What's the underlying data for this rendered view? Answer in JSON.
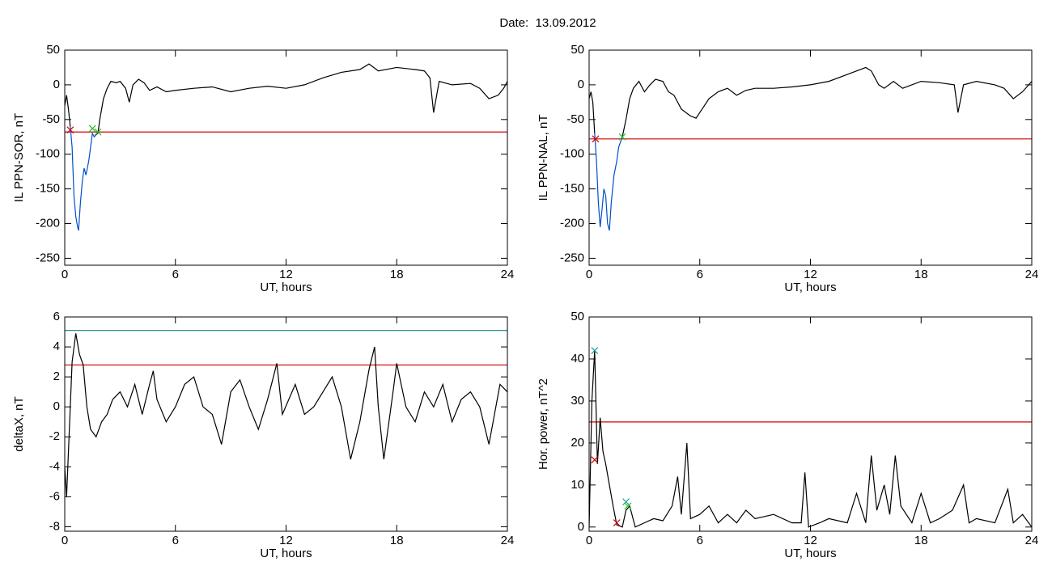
{
  "title": "Date:  13.09.2012",
  "chart_data": [
    {
      "type": "line",
      "ylabel": "IL PPN-SOR, nT",
      "xlabel": "UT, hours",
      "xlim": [
        0,
        24
      ],
      "xticks": [
        0,
        6,
        12,
        18,
        24
      ],
      "ylim": [
        -260,
        50
      ],
      "yticks": [
        -250,
        -200,
        -150,
        -100,
        -50,
        0,
        50
      ],
      "x": [
        0,
        0.1,
        0.2,
        0.3,
        0.4,
        0.5,
        0.6,
        0.7,
        0.75,
        0.85,
        0.95,
        1.05,
        1.15,
        1.3,
        1.4,
        1.5,
        1.6,
        1.7,
        1.8,
        1.9,
        2.1,
        2.3,
        2.5,
        2.8,
        3.0,
        3.3,
        3.5,
        3.7,
        4.0,
        4.3,
        4.6,
        5.0,
        5.5,
        6,
        7,
        8,
        9,
        10,
        11,
        12,
        13,
        14,
        15,
        16,
        16.5,
        17,
        18,
        19,
        19.5,
        19.8,
        20,
        20.3,
        21,
        22,
        22.5,
        23,
        23.5,
        23.8,
        24
      ],
      "series": [
        {
          "color": "#000000",
          "values": [
            -30,
            -15,
            -35,
            -60,
            null,
            null,
            null,
            null,
            null,
            null,
            null,
            null,
            null,
            null,
            null,
            null,
            null,
            null,
            -70,
            -50,
            -20,
            -5,
            5,
            3,
            5,
            -5,
            -25,
            0,
            8,
            3,
            -8,
            -3,
            -10,
            -8,
            -5,
            -3,
            -10,
            -5,
            -2,
            -5,
            0,
            10,
            18,
            22,
            30,
            20,
            25,
            22,
            20,
            10,
            -40,
            5,
            0,
            2,
            -5,
            -20,
            -15,
            -5,
            5
          ]
        },
        {
          "color": "#0050c8",
          "values": [
            null,
            null,
            null,
            -60,
            -90,
            -160,
            -190,
            -205,
            -210,
            -170,
            -140,
            -120,
            -130,
            -110,
            -90,
            -70,
            -75,
            -72,
            -70,
            null,
            null,
            null,
            null,
            null,
            null,
            null,
            null,
            null,
            null,
            null,
            null,
            null,
            null,
            null,
            null,
            null,
            null,
            null,
            null,
            null,
            null,
            null,
            null,
            null,
            null,
            null,
            null,
            null,
            null,
            null,
            null,
            null,
            null,
            null,
            null,
            null,
            null,
            null,
            null
          ]
        }
      ],
      "hlines": [
        {
          "value": -68,
          "color": "#d00000"
        }
      ],
      "markers": [
        {
          "x": 0.3,
          "y": -65,
          "color": "#d00000"
        },
        {
          "x": 1.5,
          "y": -63,
          "color": "#20c020"
        },
        {
          "x": 1.8,
          "y": -68,
          "color": "#20c020"
        }
      ]
    },
    {
      "type": "line",
      "ylabel": "IL PPN-NAL, nT",
      "xlabel": "UT, hours",
      "xlim": [
        0,
        24
      ],
      "xticks": [
        0,
        6,
        12,
        18,
        24
      ],
      "ylim": [
        -260,
        50
      ],
      "yticks": [
        -250,
        -200,
        -150,
        -100,
        -50,
        0,
        50
      ],
      "x": [
        0,
        0.1,
        0.2,
        0.3,
        0.4,
        0.5,
        0.6,
        0.7,
        0.8,
        0.9,
        1.0,
        1.1,
        1.2,
        1.35,
        1.5,
        1.6,
        1.8,
        2.0,
        2.2,
        2.4,
        2.7,
        3,
        3.3,
        3.6,
        4,
        4.3,
        4.6,
        5,
        5.5,
        5.8,
        6,
        6.5,
        7,
        7.5,
        8,
        8.5,
        9,
        10,
        11,
        12,
        13,
        14,
        15,
        15.3,
        15.7,
        16,
        16.5,
        17,
        18,
        19,
        19.8,
        20,
        20.3,
        21,
        22,
        22.5,
        23,
        23.5,
        24
      ],
      "series": [
        {
          "color": "#000000",
          "values": [
            -20,
            -10,
            -25,
            -70,
            null,
            null,
            null,
            null,
            null,
            null,
            null,
            null,
            null,
            null,
            null,
            null,
            -75,
            -50,
            -20,
            -5,
            5,
            -10,
            0,
            8,
            5,
            -10,
            -15,
            -35,
            -45,
            -48,
            -40,
            -20,
            -10,
            -5,
            -15,
            -8,
            -5,
            -5,
            -3,
            0,
            5,
            15,
            25,
            20,
            0,
            -5,
            5,
            -5,
            5,
            3,
            0,
            -40,
            0,
            5,
            0,
            -5,
            -20,
            -10,
            5
          ]
        },
        {
          "color": "#0050c8",
          "values": [
            null,
            null,
            null,
            -70,
            -110,
            -170,
            -205,
            -180,
            -150,
            -160,
            -200,
            -210,
            -170,
            -130,
            -110,
            -90,
            -75,
            null,
            null,
            null,
            null,
            null,
            null,
            null,
            null,
            null,
            null,
            null,
            null,
            null,
            null,
            null,
            null,
            null,
            null,
            null,
            null,
            null,
            null,
            null,
            null,
            null,
            null,
            null,
            null,
            null,
            null,
            null,
            null,
            null,
            null,
            null,
            null,
            null,
            null,
            null,
            null,
            null,
            null
          ]
        }
      ],
      "hlines": [
        {
          "value": -78,
          "color": "#d00000"
        }
      ],
      "markers": [
        {
          "x": 0.35,
          "y": -78,
          "color": "#d00000"
        },
        {
          "x": 1.8,
          "y": -75,
          "color": "#20c020"
        }
      ]
    },
    {
      "type": "line",
      "ylabel": "deltaX, nT",
      "xlabel": "UT, hours",
      "xlim": [
        0,
        24
      ],
      "xticks": [
        0,
        6,
        12,
        18,
        24
      ],
      "ylim": [
        -8.3,
        6
      ],
      "yticks": [
        -8,
        -6,
        -4,
        -2,
        0,
        2,
        4,
        6
      ],
      "x": [
        0,
        0.1,
        0.2,
        0.4,
        0.6,
        0.8,
        1,
        1.2,
        1.4,
        1.7,
        2,
        2.3,
        2.6,
        3,
        3.4,
        3.8,
        4.2,
        4.6,
        4.8,
        5,
        5.5,
        6,
        6.5,
        7,
        7.5,
        8,
        8.5,
        9,
        9.5,
        10,
        10.5,
        11,
        11.5,
        11.8,
        12.5,
        13,
        13.5,
        14,
        14.5,
        15,
        15.5,
        16,
        16.5,
        16.8,
        17,
        17.3,
        17.8,
        18,
        18.5,
        19,
        19.5,
        20,
        20.5,
        21,
        21.5,
        22,
        22.5,
        23,
        23.3,
        23.6,
        24
      ],
      "series": [
        {
          "color": "#000000",
          "values": [
            -4,
            -6,
            -3,
            3,
            4.9,
            3.5,
            2.8,
            0,
            -1.5,
            -2,
            -1,
            -0.5,
            0.5,
            1,
            0,
            1.5,
            -0.5,
            1.5,
            2.4,
            0.5,
            -1,
            0,
            1.5,
            2,
            0,
            -0.5,
            -2.5,
            1,
            1.8,
            0,
            -1.5,
            0.5,
            2.9,
            -0.5,
            1.5,
            -0.5,
            0,
            1,
            2,
            0,
            -3.5,
            -1,
            2.5,
            4,
            0,
            -3.5,
            1,
            2.9,
            0,
            -1,
            1,
            0,
            1.5,
            -1,
            0.5,
            1,
            0,
            -2.5,
            -0.5,
            1.5,
            1
          ]
        }
      ],
      "hlines": [
        {
          "value": 5.1,
          "color": "#108080"
        },
        {
          "value": 2.8,
          "color": "#d00000"
        }
      ],
      "markers": []
    },
    {
      "type": "line",
      "ylabel": "Hor. power, nT^2",
      "xlabel": "UT, hours",
      "xlim": [
        0,
        24
      ],
      "xticks": [
        0,
        6,
        12,
        18,
        24
      ],
      "ylim": [
        -1,
        50
      ],
      "yticks": [
        0,
        10,
        20,
        30,
        40,
        50
      ],
      "x": [
        0,
        0.15,
        0.3,
        0.45,
        0.6,
        0.75,
        0.9,
        1.1,
        1.3,
        1.5,
        1.8,
        2,
        2.2,
        2.5,
        3,
        3.5,
        4,
        4.5,
        4.8,
        5,
        5.3,
        5.5,
        6,
        6.5,
        7,
        7.5,
        8,
        8.5,
        9,
        10,
        11,
        11.5,
        11.7,
        11.9,
        12.5,
        13,
        14,
        14.5,
        15,
        15.3,
        15.6,
        16,
        16.3,
        16.6,
        16.9,
        17.5,
        18,
        18.5,
        19,
        19.7,
        20.3,
        20.6,
        21,
        22,
        22.7,
        23,
        23.5,
        24
      ],
      "series": [
        {
          "color": "#000000",
          "values": [
            0,
            30,
            42,
            15,
            26,
            18,
            15,
            10,
            5,
            0.5,
            0,
            4,
            5,
            0,
            1,
            2,
            1.5,
            5,
            12,
            3,
            20,
            2,
            3,
            5,
            1,
            3,
            1,
            4,
            2,
            3,
            1,
            1,
            13,
            0,
            1,
            2,
            1,
            8,
            1,
            17,
            4,
            10,
            3,
            17,
            5,
            1,
            8,
            1,
            2,
            4,
            10,
            1,
            2,
            1,
            9,
            1,
            3,
            0
          ]
        }
      ],
      "hlines": [
        {
          "value": 25,
          "color": "#d00000"
        }
      ],
      "markers": [
        {
          "x": 0.3,
          "y": 42,
          "color": "#10a0a0"
        },
        {
          "x": 0.3,
          "y": 16,
          "color": "#d00000"
        },
        {
          "x": 1.5,
          "y": 1,
          "color": "#d00000"
        },
        {
          "x": 2.0,
          "y": 6,
          "color": "#10a0a0"
        },
        {
          "x": 2.1,
          "y": 5,
          "color": "#20c020"
        }
      ]
    }
  ]
}
